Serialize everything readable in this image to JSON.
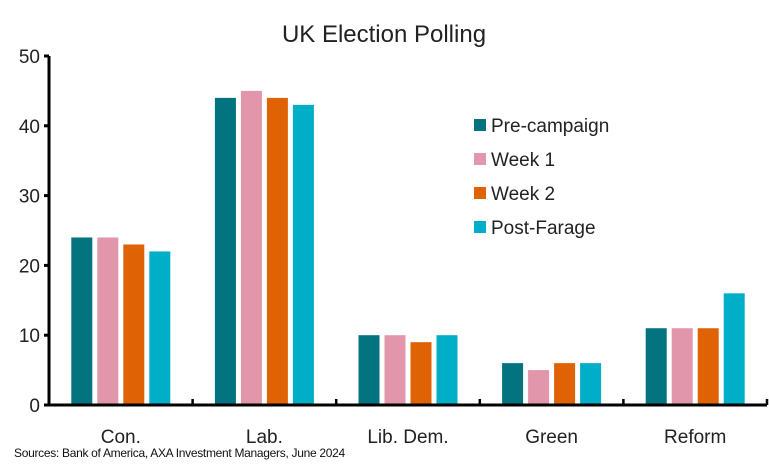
{
  "chart_data": {
    "type": "bar",
    "title": "UK Election Polling",
    "xlabel": "",
    "ylabel": "",
    "ylim": [
      0,
      50
    ],
    "yticks": [
      0,
      10,
      20,
      30,
      40,
      50
    ],
    "grid": false,
    "legend_position": "top-right",
    "categories": [
      "Con.",
      "Lab.",
      "Lib. Dem.",
      "Green",
      "Reform"
    ],
    "series": [
      {
        "name": "Pre-campaign",
        "color": "#037380",
        "values": [
          24,
          44,
          10,
          6,
          11
        ]
      },
      {
        "name": "Week 1",
        "color": "#E196AB",
        "values": [
          24,
          45,
          10,
          5,
          11
        ]
      },
      {
        "name": "Week 2",
        "color": "#DF6305",
        "values": [
          23,
          44,
          9,
          6,
          11
        ]
      },
      {
        "name": "Post-Farage",
        "color": "#00AEC7",
        "values": [
          22,
          43,
          10,
          6,
          16
        ]
      }
    ]
  },
  "source": "Sources: Bank of America, AXA Investment Managers, June 2024"
}
